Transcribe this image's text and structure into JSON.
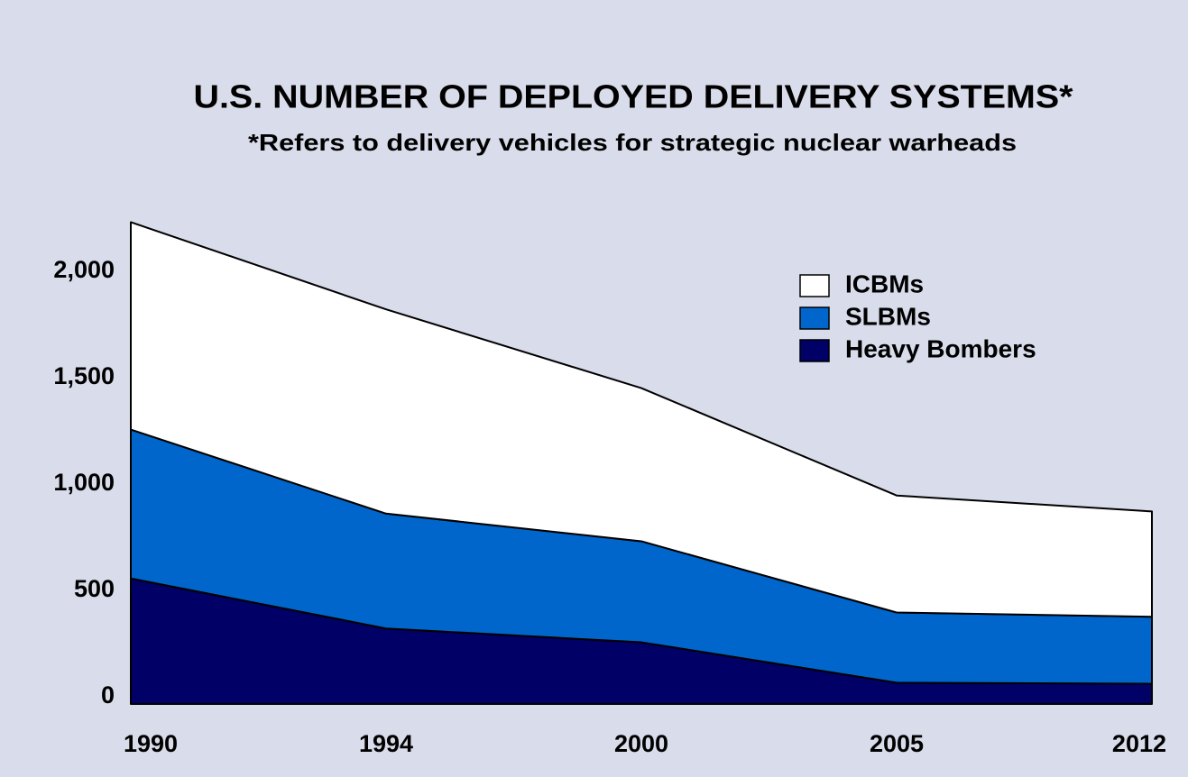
{
  "chart_data": {
    "type": "stacked_area",
    "title": "U.S. NUMBER OF DEPLOYED DELIVERY SYSTEMS*",
    "subtitle": "*Refers to delivery vehicles for strategic nuclear warheads",
    "categories": [
      "1990",
      "1994",
      "2000",
      "2005",
      "2012"
    ],
    "series": [
      {
        "name": "Heavy Bombers",
        "color": "#000066",
        "values": [
          590,
          355,
          290,
          100,
          95
        ]
      },
      {
        "name": "SLBMs",
        "color": "#0066cc",
        "values": [
          700,
          540,
          475,
          330,
          315
        ]
      },
      {
        "name": "ICBMs",
        "color": "#ffffff",
        "values": [
          975,
          960,
          720,
          550,
          495
        ]
      }
    ],
    "ylim": [
      0,
      2300
    ],
    "yticks": [
      0,
      500,
      {
        "value": 1000,
        "label": "1,000"
      },
      {
        "value": 1500,
        "label": "1,500"
      },
      {
        "value": 2000,
        "label": "2,000"
      }
    ],
    "grid": false,
    "legend": "upper right"
  }
}
